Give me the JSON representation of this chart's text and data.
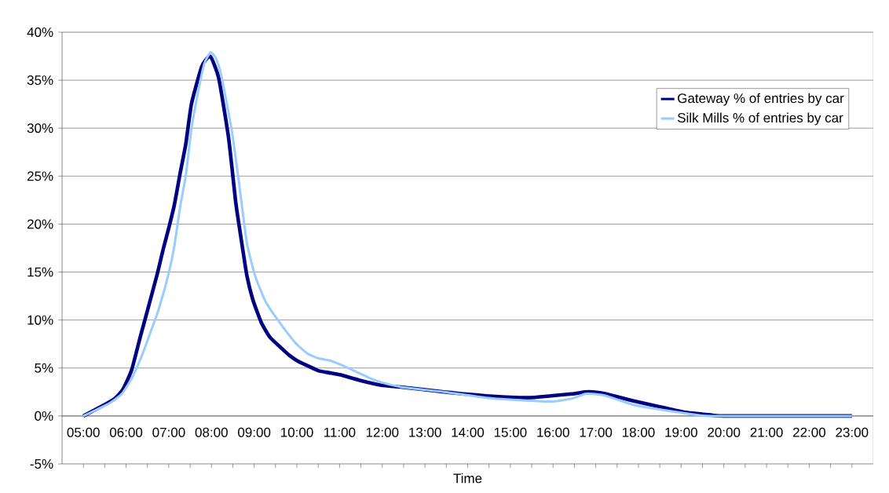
{
  "chart_data": {
    "type": "line",
    "xlabel": "Time",
    "xlim": [
      4.5,
      23.5
    ],
    "xticks": [
      {
        "value": 5,
        "label": "05:00"
      },
      {
        "value": 5.5,
        "label": null
      },
      {
        "value": 6,
        "label": "06:00"
      },
      {
        "value": 6.5,
        "label": null
      },
      {
        "value": 7,
        "label": "07:00"
      },
      {
        "value": 7.5,
        "label": null
      },
      {
        "value": 8,
        "label": "08:00"
      },
      {
        "value": 8.5,
        "label": null
      },
      {
        "value": 9,
        "label": "09:00"
      },
      {
        "value": 9.5,
        "label": null
      },
      {
        "value": 10,
        "label": "10:00"
      },
      {
        "value": 10.5,
        "label": null
      },
      {
        "value": 11,
        "label": "11:00"
      },
      {
        "value": 11.5,
        "label": null
      },
      {
        "value": 12,
        "label": "12:00"
      },
      {
        "value": 12.5,
        "label": null
      },
      {
        "value": 13,
        "label": "13:00"
      },
      {
        "value": 13.5,
        "label": null
      },
      {
        "value": 14,
        "label": "14:00"
      },
      {
        "value": 14.5,
        "label": null
      },
      {
        "value": 15,
        "label": "15:00"
      },
      {
        "value": 15.5,
        "label": null
      },
      {
        "value": 16,
        "label": "16:00"
      },
      {
        "value": 16.5,
        "label": null
      },
      {
        "value": 17,
        "label": "17:00"
      },
      {
        "value": 17.5,
        "label": null
      },
      {
        "value": 18,
        "label": "18:00"
      },
      {
        "value": 18.5,
        "label": null
      },
      {
        "value": 19,
        "label": "19:00"
      },
      {
        "value": 19.5,
        "label": null
      },
      {
        "value": 20,
        "label": "20:00"
      },
      {
        "value": 20.5,
        "label": null
      },
      {
        "value": 21,
        "label": "21:00"
      },
      {
        "value": 21.5,
        "label": null
      },
      {
        "value": 22,
        "label": "22:00"
      },
      {
        "value": 22.5,
        "label": null
      },
      {
        "value": 23,
        "label": "23:00"
      }
    ],
    "ylim": [
      -5,
      40
    ],
    "yticks": [
      {
        "value": -5,
        "label": "-5%"
      },
      {
        "value": 0,
        "label": "0%"
      },
      {
        "value": 5,
        "label": "5%"
      },
      {
        "value": 10,
        "label": "10%"
      },
      {
        "value": 15,
        "label": "15%"
      },
      {
        "value": 20,
        "label": "20%"
      },
      {
        "value": 25,
        "label": "25%"
      },
      {
        "value": 30,
        "label": "30%"
      },
      {
        "value": 35,
        "label": "35%"
      },
      {
        "value": 40,
        "label": "40%"
      }
    ],
    "grid": "y",
    "legend": "top right",
    "marker": "none",
    "line_style": "solid",
    "series": [
      {
        "name": "Gateway % of entries by car",
        "color": "#000080",
        "x": [
          5.0,
          5.7,
          5.93,
          6.13,
          6.33,
          6.47,
          6.73,
          6.87,
          7.0,
          7.13,
          7.27,
          7.4,
          7.53,
          7.77,
          7.97,
          8.17,
          8.4,
          8.57,
          8.7,
          8.83,
          8.97,
          9.17,
          9.37,
          9.63,
          9.83,
          10.03,
          10.27,
          10.51,
          10.76,
          11.0,
          11.49,
          11.98,
          12.47,
          13.45,
          14.43,
          15.4,
          15.95,
          16.44,
          16.75,
          16.93,
          17.24,
          17.85,
          18.46,
          19.07,
          19.69,
          19.99,
          23.0
        ],
        "values": [
          0,
          1.7,
          2.8,
          4.8,
          8.2,
          10.5,
          14.8,
          17.4,
          19.6,
          22.0,
          25.4,
          28.4,
          32.5,
          36.4,
          37.5,
          35.2,
          29.0,
          22.2,
          18.3,
          14.6,
          12.1,
          9.7,
          8.2,
          7.1,
          6.3,
          5.7,
          5.2,
          4.7,
          4.5,
          4.3,
          3.7,
          3.2,
          3.0,
          2.5,
          2.1,
          1.9,
          2.1,
          2.3,
          2.5,
          2.5,
          2.3,
          1.6,
          1.0,
          0.4,
          0.1,
          0,
          0
        ]
      },
      {
        "name": "Silk Mills % of entries by car",
        "color": "#99ccff",
        "x": [
          5.0,
          5.6,
          5.9,
          6.13,
          6.37,
          6.57,
          6.77,
          7.0,
          7.13,
          7.27,
          7.4,
          7.53,
          7.67,
          7.83,
          7.98,
          8.1,
          8.23,
          8.47,
          8.63,
          8.83,
          9.03,
          9.27,
          9.57,
          9.97,
          10.25,
          10.51,
          10.76,
          11.0,
          11.25,
          11.49,
          11.73,
          11.98,
          12.47,
          13.45,
          14.43,
          15.4,
          15.95,
          16.44,
          16.75,
          16.93,
          17.24,
          17.85,
          18.46,
          19.07,
          19.69,
          23.0
        ],
        "values": [
          0,
          1.3,
          2.3,
          3.9,
          6.3,
          8.7,
          11.2,
          14.9,
          17.7,
          21.9,
          25.1,
          29.9,
          33.4,
          36.7,
          37.9,
          37.3,
          35.5,
          29.9,
          24.8,
          18.0,
          14.5,
          11.9,
          9.9,
          7.6,
          6.5,
          6.0,
          5.8,
          5.4,
          4.9,
          4.4,
          3.9,
          3.5,
          3.0,
          2.5,
          1.9,
          1.6,
          1.5,
          1.8,
          2.3,
          2.3,
          2.1,
          1.2,
          0.7,
          0.3,
          0,
          0
        ]
      }
    ]
  }
}
